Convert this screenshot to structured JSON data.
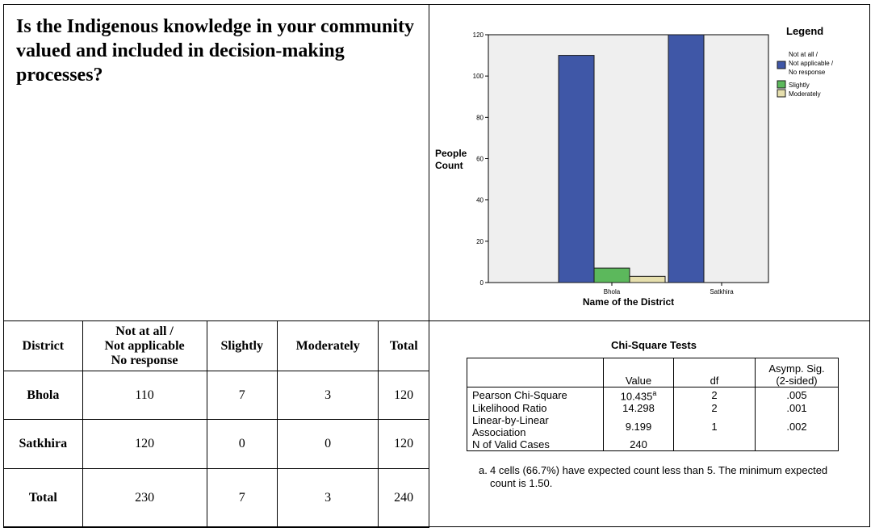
{
  "question": "Is the Indigenous knowledge in your community valued and included in decision-making processes?",
  "chart_data": {
    "type": "bar",
    "categories": [
      "Bhola",
      "Satkhira"
    ],
    "series": [
      {
        "name": "Not at all / Not applicable / No response",
        "legend_lines": [
          "Not at all /",
          "Not applicable /",
          "No response"
        ],
        "values": [
          110,
          120
        ],
        "color": "#3f57a7"
      },
      {
        "name": "Slightly",
        "legend_lines": [
          "Slightly"
        ],
        "values": [
          7,
          0
        ],
        "color": "#5cb85c"
      },
      {
        "name": "Moderately",
        "legend_lines": [
          "Moderately"
        ],
        "values": [
          3,
          0
        ],
        "color": "#e6dfad"
      }
    ],
    "yticks": [
      0,
      20,
      40,
      60,
      80,
      100,
      120
    ],
    "ylim": [
      0,
      120
    ],
    "xlabel": "Name of the District",
    "ylabel_lines": [
      "People",
      "Count"
    ],
    "legend_title": "Legend",
    "legend_position": "top-right",
    "plot_background": "#efefef",
    "grid": false
  },
  "crosstab": {
    "headers": [
      "District",
      "Not at all / Not applicable No response",
      "Slightly",
      "Moderately",
      "Total"
    ],
    "header_lines_col1": [
      "Not at all /",
      "Not applicable",
      "No response"
    ],
    "rows": [
      {
        "district": "Bhola",
        "values": [
          "110",
          "7",
          "3",
          "120"
        ]
      },
      {
        "district": "Satkhira",
        "values": [
          "120",
          "0",
          "0",
          "120"
        ]
      },
      {
        "district": "Total",
        "values": [
          "230",
          "7",
          "3",
          "240"
        ]
      }
    ]
  },
  "chi_square": {
    "title": "Chi-Square Tests",
    "columns": [
      "Value",
      "df",
      "Asymp. Sig. (2-sided)"
    ],
    "sig_header_lines": [
      "Asymp. Sig.",
      "(2-sided)"
    ],
    "rows": [
      {
        "label": "Pearson Chi-Square",
        "value": "10.435",
        "sup": "a",
        "df": "2",
        "sig": ".005"
      },
      {
        "label": "Likelihood Ratio",
        "value": "14.298",
        "sup": "",
        "df": "2",
        "sig": ".001"
      },
      {
        "label_lines": [
          "Linear-by-Linear",
          "Association"
        ],
        "value": "9.199",
        "sup": "",
        "df": "1",
        "sig": ".002"
      },
      {
        "label": "N of Valid Cases",
        "value": "240",
        "sup": "",
        "df": "",
        "sig": ""
      }
    ],
    "footnote_mark": "a.",
    "footnote": "4 cells (66.7%) have expected count less than 5. The minimum expected count is 1.50."
  }
}
